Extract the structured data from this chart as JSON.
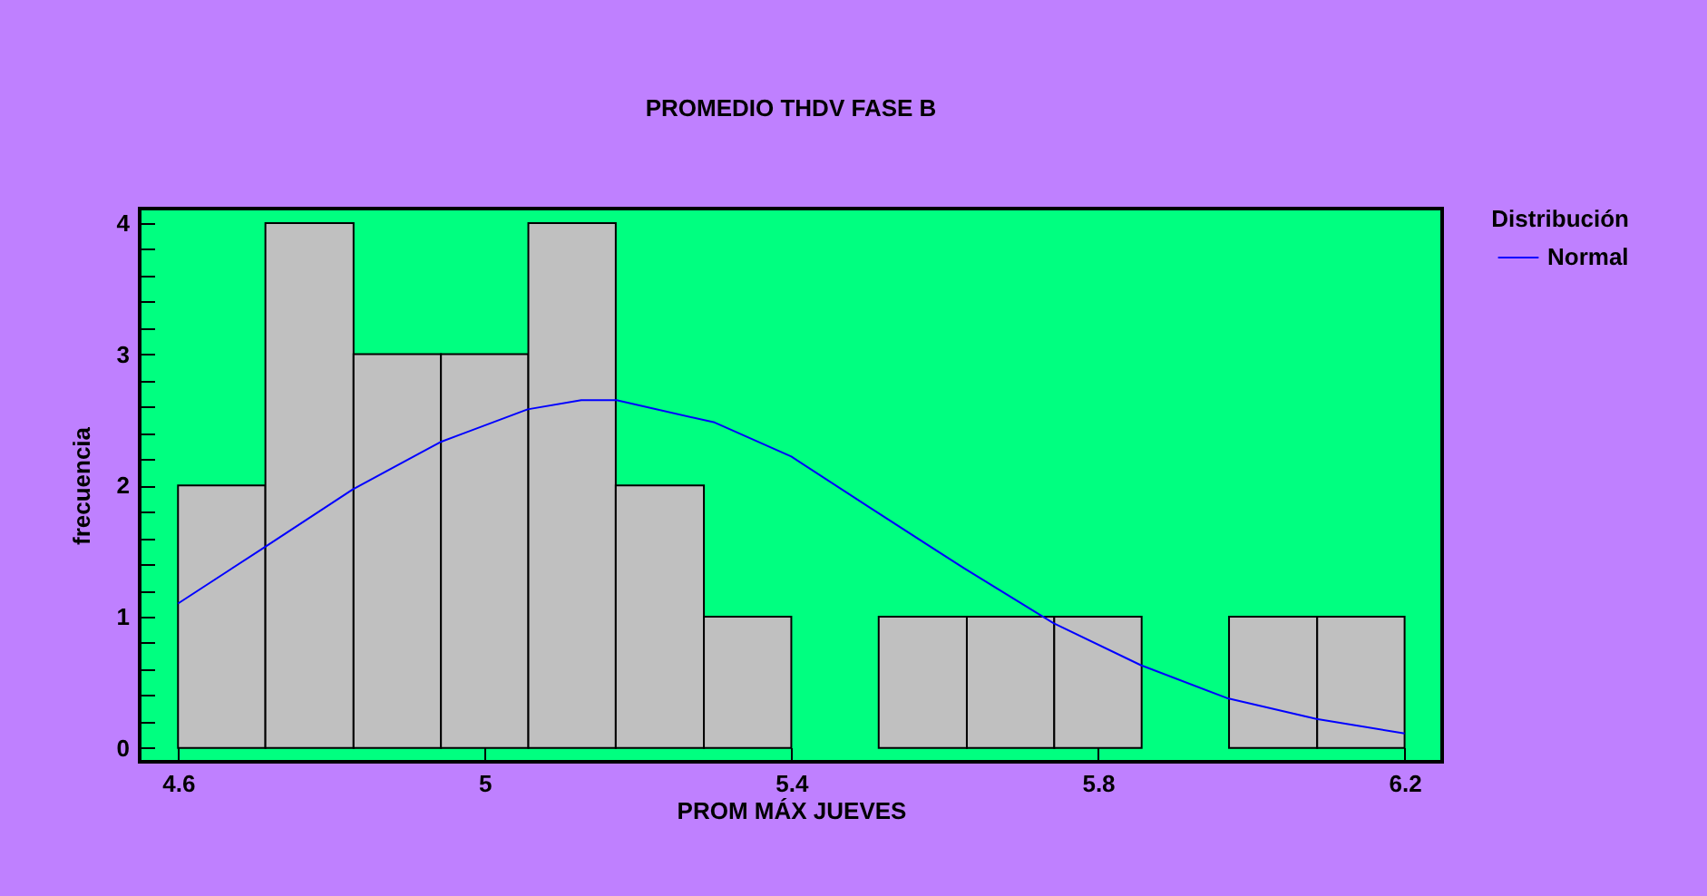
{
  "chart_data": {
    "type": "histogram",
    "title": "PROMEDIO THDV FASE B",
    "xlabel": "PROM MÁX JUEVES",
    "ylabel": "frecuencia",
    "legend_title": "Distribución",
    "bins": [
      4.6,
      4.714,
      4.829,
      4.943,
      5.057,
      5.171,
      5.286,
      5.4,
      5.514,
      5.629,
      5.743,
      5.857,
      5.971,
      6.086,
      6.2
    ],
    "values": [
      2,
      4,
      3,
      3,
      4,
      2,
      1,
      0,
      1,
      1,
      1,
      0,
      1,
      1
    ],
    "color": "#c0c0c0",
    "series": [
      {
        "type": "line",
        "name": "Normal",
        "color": "#0000ff",
        "x": [
          4.6,
          4.713,
          4.828,
          4.942,
          5.056,
          5.126,
          5.172,
          5.3,
          5.4,
          5.5,
          5.625,
          5.742,
          5.856,
          5.968,
          6.085,
          6.2
        ],
        "values": [
          1.1,
          1.53,
          1.97,
          2.33,
          2.58,
          2.65,
          2.65,
          2.48,
          2.22,
          1.84,
          1.37,
          0.95,
          0.63,
          0.38,
          0.22,
          0.11
        ]
      }
    ],
    "xlim": [
      4.55,
      6.249
    ],
    "ylim": [
      -0.106,
      4.11
    ],
    "xticks": [
      4.6,
      5,
      5.4,
      5.8,
      6.2
    ],
    "yticks": [
      0,
      {
        "value": 0.2,
        "label": null
      },
      {
        "value": 0.4,
        "label": null
      },
      {
        "value": 0.6,
        "label": null
      },
      {
        "value": 0.8,
        "label": null
      },
      1,
      {
        "value": 1.2,
        "label": null
      },
      {
        "value": 1.4,
        "label": null
      },
      {
        "value": 1.6,
        "label": null
      },
      {
        "value": 1.8,
        "label": null
      },
      2,
      {
        "value": 2.2,
        "label": null
      },
      {
        "value": 2.4,
        "label": null
      },
      {
        "value": 2.6,
        "label": null
      },
      {
        "value": 2.8,
        "label": null
      },
      3,
      {
        "value": 3.2,
        "label": null
      },
      {
        "value": 3.4,
        "label": null
      },
      {
        "value": 3.6,
        "label": null
      },
      {
        "value": 3.8,
        "label": null
      },
      4
    ],
    "legend": "top right",
    "grid": false
  }
}
